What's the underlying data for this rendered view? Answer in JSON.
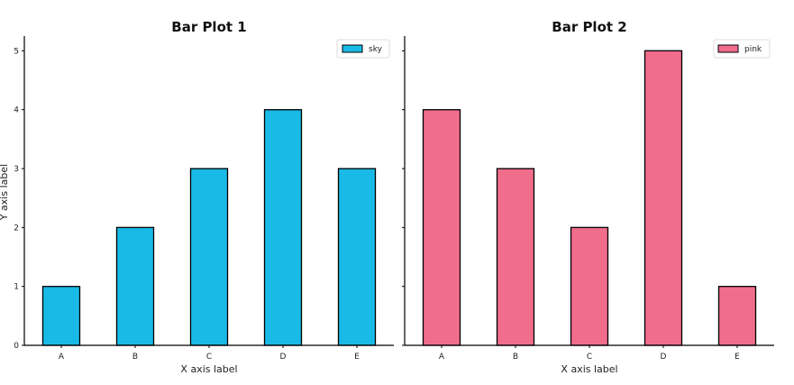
{
  "chart_data": [
    {
      "type": "bar",
      "title": "Bar Plot 1",
      "categories": [
        "A",
        "B",
        "C",
        "D",
        "E"
      ],
      "series": [
        {
          "name": "sky",
          "values": [
            1,
            2,
            3,
            4,
            3
          ],
          "color": "#19bae6"
        }
      ],
      "xlabel": "X axis label",
      "ylabel": "Y axis label",
      "ylim": [
        0,
        5.25
      ],
      "yticks": [
        "0",
        "1",
        "2",
        "3",
        "4",
        "5"
      ],
      "grid": false,
      "legend_position": "top-right"
    },
    {
      "type": "bar",
      "title": "Bar Plot 2",
      "categories": [
        "A",
        "B",
        "C",
        "D",
        "E"
      ],
      "series": [
        {
          "name": "pink",
          "values": [
            4,
            3,
            2,
            5,
            1
          ],
          "color": "#f06d8c"
        }
      ],
      "xlabel": "X axis label",
      "ylabel": "",
      "ylim": [
        0,
        5.25
      ],
      "yticks": [],
      "grid": false,
      "legend_position": "top-right"
    }
  ]
}
